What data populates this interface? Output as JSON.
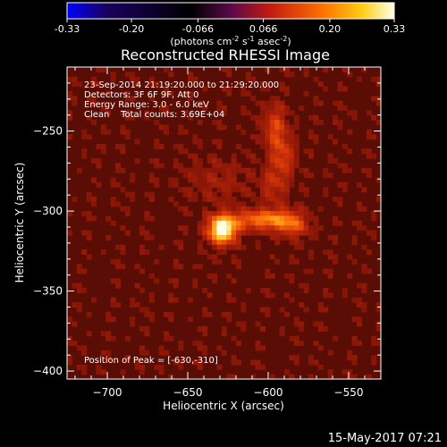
{
  "colorbar": {
    "ticks": [
      "-0.33",
      "-0.20",
      "-0.066",
      "0.066",
      "0.20",
      "0.33"
    ],
    "tick_values": [
      -0.33,
      -0.2,
      -0.066,
      0.066,
      0.2,
      0.33
    ],
    "range": [
      -0.33,
      0.33
    ],
    "label_prefix": "(photons cm",
    "label_exp1": "-2",
    "label_mid": " s",
    "label_exp2": "-1",
    "label_mid2": " asec",
    "label_exp3": "-2",
    "label_suffix": ")"
  },
  "chart_data": {
    "type": "heatmap",
    "title": "Reconstructed RHESSI Image",
    "xlabel": "Heliocentric X (arcsec)",
    "ylabel": "Heliocentric Y (arcsec)",
    "xlim": [
      -725,
      -530
    ],
    "ylim": [
      -405,
      -210
    ],
    "xticks": [
      -700,
      -650,
      -600,
      -550
    ],
    "xtick_labels": [
      "−700",
      "−650",
      "−600",
      "−550"
    ],
    "yticks": [
      -400,
      -350,
      -300,
      -250
    ],
    "ytick_labels": [
      "−400",
      "−350",
      "−300",
      "−250"
    ],
    "peak": {
      "x": -630,
      "y": -310
    },
    "sources": [
      {
        "x": -630,
        "y": -310,
        "amp": 1.0,
        "sx": 6,
        "sy": 6
      },
      {
        "x": -612,
        "y": -304,
        "amp": 0.38,
        "sx": 10,
        "sy": 4
      },
      {
        "x": -595,
        "y": -304,
        "amp": 0.42,
        "sx": 9,
        "sy": 5
      },
      {
        "x": -585,
        "y": -308,
        "amp": 0.28,
        "sx": 6,
        "sy": 5
      },
      {
        "x": -597,
        "y": -247,
        "amp": 0.34,
        "sx": 5,
        "sy": 10
      },
      {
        "x": -592,
        "y": -265,
        "amp": 0.28,
        "sx": 5,
        "sy": 8
      },
      {
        "x": -598,
        "y": -282,
        "amp": 0.22,
        "sx": 6,
        "sy": 8
      },
      {
        "x": -632,
        "y": -280,
        "amp": 0.12,
        "sx": 14,
        "sy": 10
      }
    ],
    "annotations": [
      "23-Sep-2014 21:19:20.000 to 21:29:20.000",
      "Detectors: 3F 6F 9F, Att 0",
      "Energy Range: 3.0 - 6.0 keV",
      "Clean    Total counts: 3.69E+04"
    ],
    "peak_label": "Position of Peak = [-630,-310]"
  },
  "footer": {
    "date": "15-May-2017 07:21"
  }
}
